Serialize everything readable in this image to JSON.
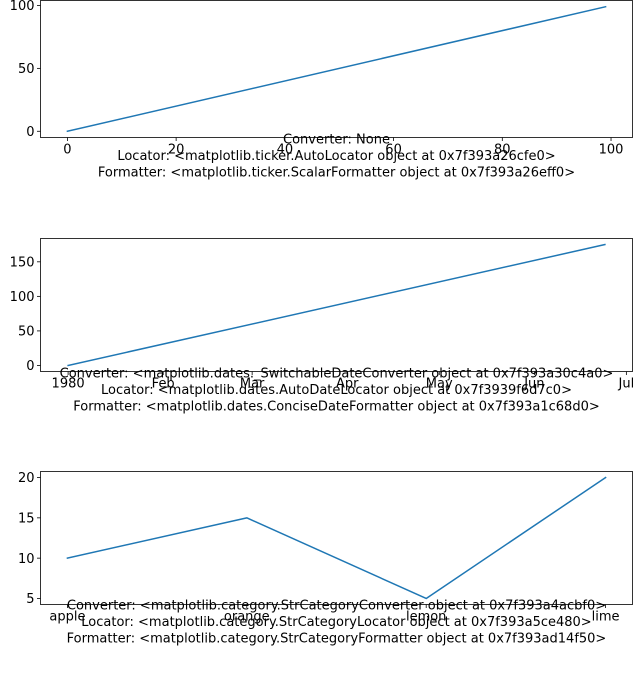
{
  "chart_data": [
    {
      "type": "line",
      "x": [
        0,
        99
      ],
      "values": [
        0,
        99
      ],
      "xlim": [
        -4.95,
        103.95
      ],
      "ylim": [
        -4.95,
        103.95
      ],
      "xticks": [
        0,
        20,
        40,
        60,
        80,
        100
      ],
      "xtick_labels": [
        "0",
        "20",
        "40",
        "60",
        "80",
        "100"
      ],
      "yticks": [
        0,
        50,
        100
      ],
      "ytick_labels": [
        "0",
        "50",
        "100"
      ],
      "xlabel_lines": [
        "Converter: None",
        "Locator: <matplotlib.ticker.AutoLocator object at 0x7f393a26cfe0>",
        "Formatter: <matplotlib.ticker.ScalarFormatter object at 0x7f393a26eff0>"
      ],
      "color": "#1f77b4",
      "grid": false
    },
    {
      "type": "line",
      "x": [
        "1980-01-01",
        "1980-06-24"
      ],
      "x_scale": "date",
      "values": [
        0,
        175
      ],
      "xlim": [
        "1979-12-23",
        "1980-07-03"
      ],
      "ylim": [
        -8.75,
        183.75
      ],
      "xticks": [
        "1980-01-01",
        "1980-02-01",
        "1980-03-01",
        "1980-04-01",
        "1980-05-01",
        "1980-06-01",
        "1980-07-01"
      ],
      "xtick_labels": [
        "1980",
        "Feb",
        "Mar",
        "Apr",
        "May",
        "Jun",
        "Jul"
      ],
      "yticks": [
        0,
        50,
        100,
        150
      ],
      "ytick_labels": [
        "0",
        "50",
        "100",
        "150"
      ],
      "xlabel_lines": [
        "Converter: <matplotlib.dates._SwitchableDateConverter object at 0x7f393a30c4a0>",
        "Locator: <matplotlib.dates.AutoDateLocator object at 0x7f3939f6d7c0>",
        "Formatter: <matplotlib.dates.ConciseDateFormatter object at 0x7f393a1c68d0>"
      ],
      "color": "#1f77b4",
      "grid": false
    },
    {
      "type": "line",
      "categories": [
        "apple",
        "orange",
        "lemon",
        "lime"
      ],
      "values": [
        10,
        15,
        5,
        20
      ],
      "xlim": [
        -0.15,
        3.15
      ],
      "ylim": [
        4.25,
        20.75
      ],
      "yticks": [
        5,
        10,
        15,
        20
      ],
      "ytick_labels": [
        "5",
        "10",
        "15",
        "20"
      ],
      "xlabel_lines": [
        "Converter: <matplotlib.category.StrCategoryConverter object at 0x7f393a4acbf0>",
        "Locator: <matplotlib.category.StrCategoryLocator object at 0x7f393a5ce480>",
        "Formatter: <matplotlib.category.StrCategoryFormatter object at 0x7f393ad14f50>"
      ],
      "color": "#1f77b4",
      "grid": false
    }
  ]
}
